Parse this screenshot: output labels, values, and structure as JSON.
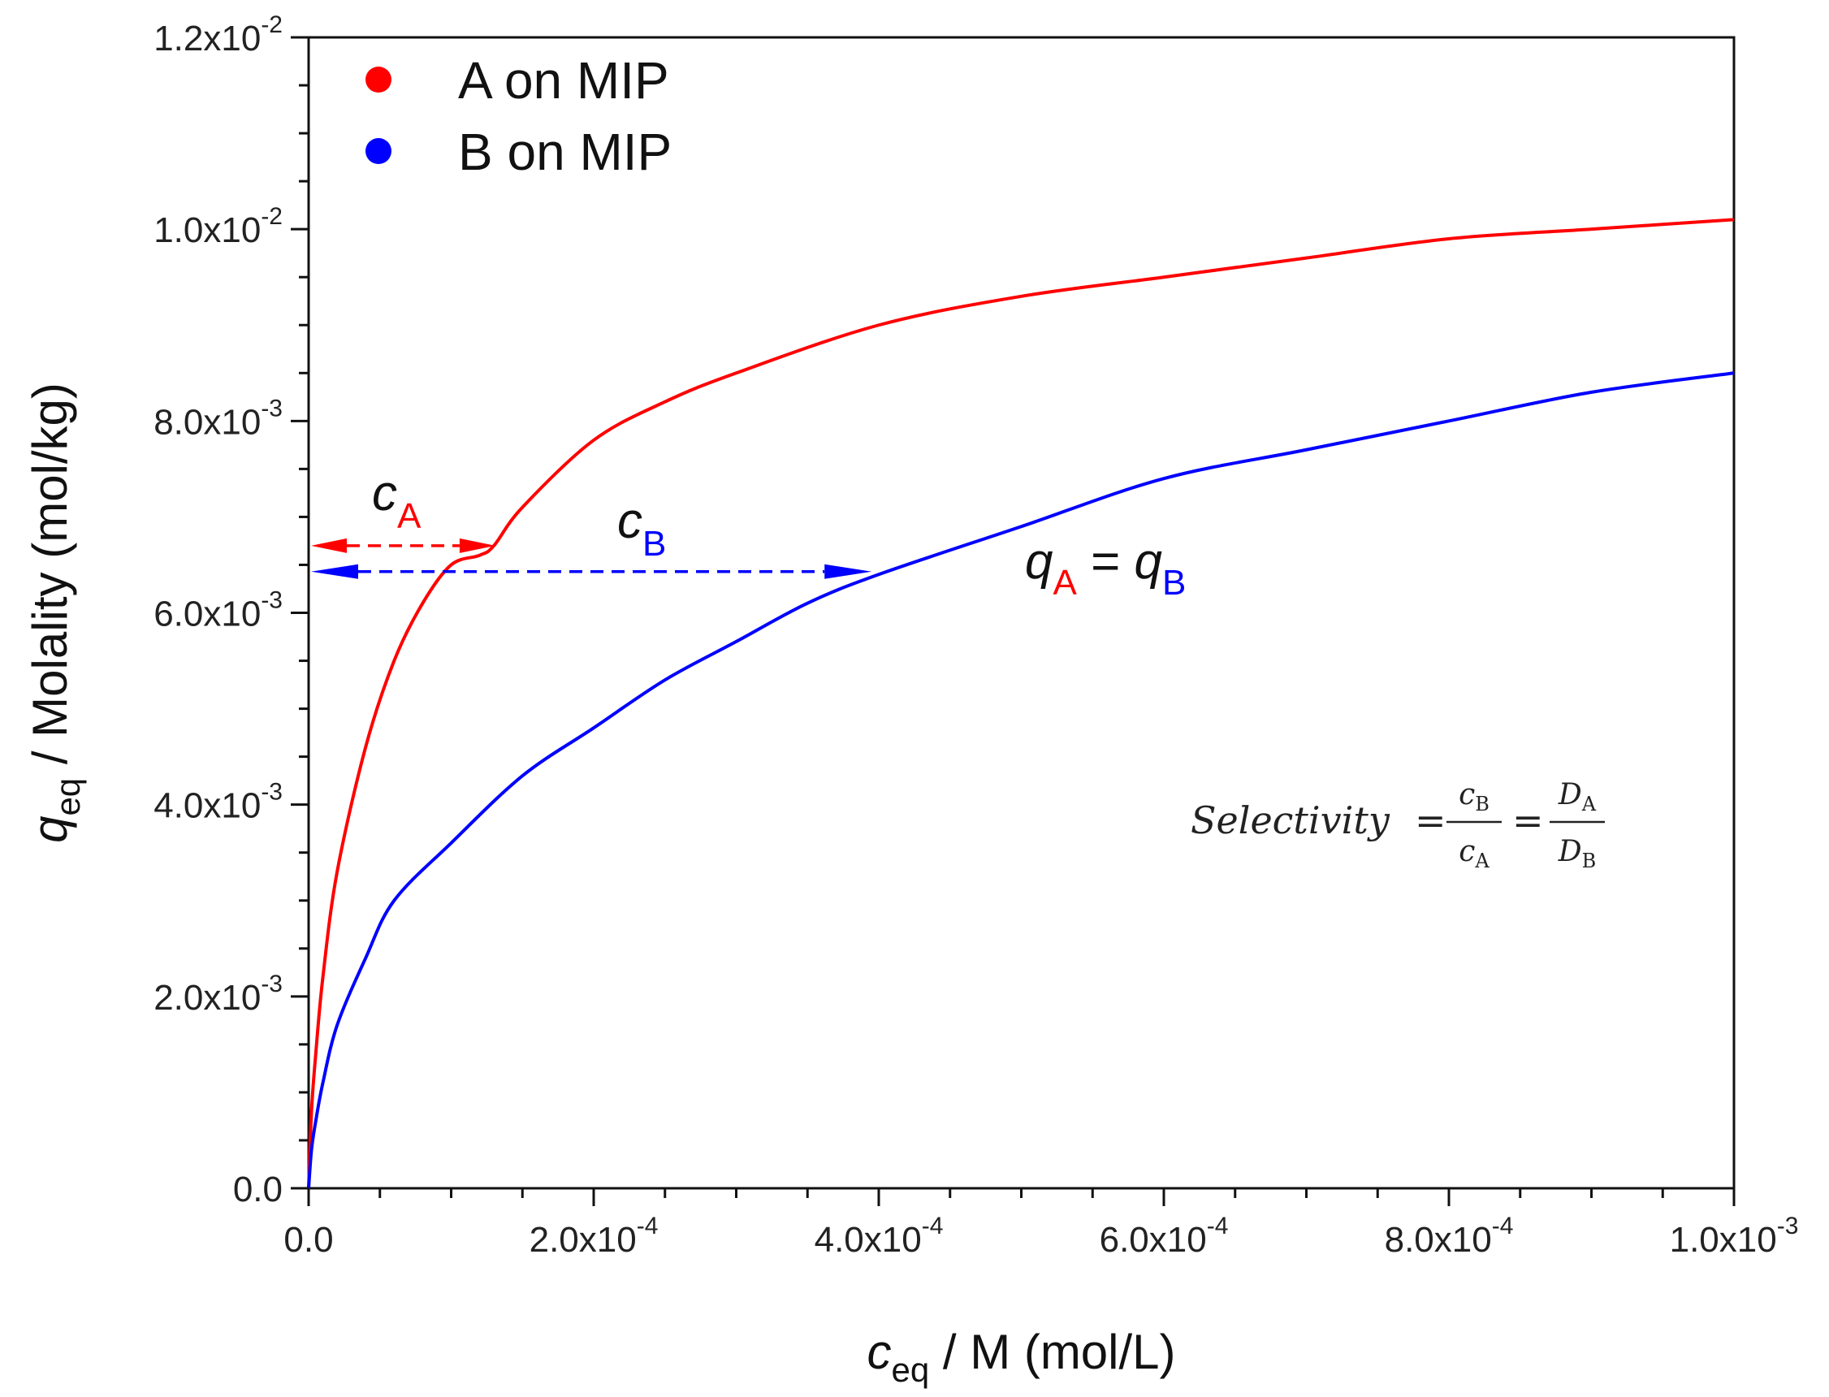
{
  "chart_data": {
    "type": "line",
    "title": "",
    "xlabel": {
      "main": "c",
      "sub": "eq",
      "rest": " / M (mol/L)"
    },
    "ylabel": {
      "main": "q",
      "sub": "eq",
      "rest": " / Molality (mol/kg)"
    },
    "xlim": [
      0,
      0.001
    ],
    "ylim": [
      0,
      0.012
    ],
    "grid": false,
    "legend_position": "top-left",
    "x_ticks": [
      {
        "value": 0.0,
        "mantissa": "0.0",
        "exponent": ""
      },
      {
        "value": 0.0002,
        "mantissa": "2.0x10",
        "exponent": "-4"
      },
      {
        "value": 0.0004,
        "mantissa": "4.0x10",
        "exponent": "-4"
      },
      {
        "value": 0.0006,
        "mantissa": "6.0x10",
        "exponent": "-4"
      },
      {
        "value": 0.0008,
        "mantissa": "8.0x10",
        "exponent": "-4"
      },
      {
        "value": 0.001,
        "mantissa": "1.0x10",
        "exponent": "-3"
      }
    ],
    "y_ticks": [
      {
        "value": 0.0,
        "mantissa": "0.0",
        "exponent": ""
      },
      {
        "value": 0.002,
        "mantissa": "2.0x10",
        "exponent": "-3"
      },
      {
        "value": 0.004,
        "mantissa": "4.0x10",
        "exponent": "-3"
      },
      {
        "value": 0.006,
        "mantissa": "6.0x10",
        "exponent": "-3"
      },
      {
        "value": 0.008,
        "mantissa": "8.0x10",
        "exponent": "-3"
      },
      {
        "value": 0.01,
        "mantissa": "1.0x10",
        "exponent": "-2"
      },
      {
        "value": 0.012,
        "mantissa": "1.2x10",
        "exponent": "-2"
      }
    ],
    "series": [
      {
        "name": "A on MIP",
        "color": "#ff0000",
        "points": [
          [
            0.0,
            0.0
          ],
          [
            2e-06,
            0.0008
          ],
          [
            5e-06,
            0.0014
          ],
          [
            1e-05,
            0.0022
          ],
          [
            2e-05,
            0.0033
          ],
          [
            4e-05,
            0.0046
          ],
          [
            6e-05,
            0.0055
          ],
          [
            8e-05,
            0.0061
          ],
          [
            0.0001,
            0.0065
          ],
          [
            0.00012,
            0.0066
          ],
          [
            0.00013,
            0.0067
          ],
          [
            0.00015,
            0.0071
          ],
          [
            0.0002,
            0.0078
          ],
          [
            0.00025,
            0.0082
          ],
          [
            0.0003,
            0.0085
          ],
          [
            0.0004,
            0.009
          ],
          [
            0.0005,
            0.0093
          ],
          [
            0.0006,
            0.0095
          ],
          [
            0.0007,
            0.0097
          ],
          [
            0.0008,
            0.0099
          ],
          [
            0.0009,
            0.01
          ],
          [
            0.001,
            0.0101
          ]
        ]
      },
      {
        "name": "B on MIP",
        "color": "#0000ff",
        "points": [
          [
            0.0,
            0.0
          ],
          [
            2e-06,
            0.0004
          ],
          [
            5e-06,
            0.0007
          ],
          [
            1e-05,
            0.0011
          ],
          [
            2e-05,
            0.0017
          ],
          [
            4e-05,
            0.0024
          ],
          [
            6e-05,
            0.003
          ],
          [
            0.0001,
            0.0036
          ],
          [
            0.00015,
            0.0043
          ],
          [
            0.0002,
            0.0048
          ],
          [
            0.00025,
            0.0053
          ],
          [
            0.0003,
            0.0057
          ],
          [
            0.00035,
            0.0061
          ],
          [
            0.0004,
            0.0064
          ],
          [
            0.0005,
            0.0069
          ],
          [
            0.0006,
            0.0074
          ],
          [
            0.0007,
            0.0077
          ],
          [
            0.0008,
            0.008
          ],
          [
            0.0009,
            0.0083
          ],
          [
            0.001,
            0.0085
          ]
        ]
      }
    ],
    "annotations": {
      "cA": {
        "main": "c",
        "sub": "A",
        "x_end": 0.000131,
        "y": 0.0067,
        "color": "#ff0000"
      },
      "cB": {
        "main": "c",
        "sub": "B",
        "x_end": 0.000395,
        "y": 0.00643,
        "color": "#0000ff"
      },
      "equality": {
        "q1": "q",
        "sub1": "A",
        "eq": " = ",
        "q2": "q",
        "sub2": "B"
      },
      "formula": {
        "lhs": "Selectivity",
        "eq": "=",
        "frac1_num": "c",
        "frac1_num_sub": "B",
        "frac1_den": "c",
        "frac1_den_sub": "A",
        "frac2_num": "D",
        "frac2_num_sub": "A",
        "frac2_den": "D",
        "frac2_den_sub": "B"
      }
    }
  }
}
